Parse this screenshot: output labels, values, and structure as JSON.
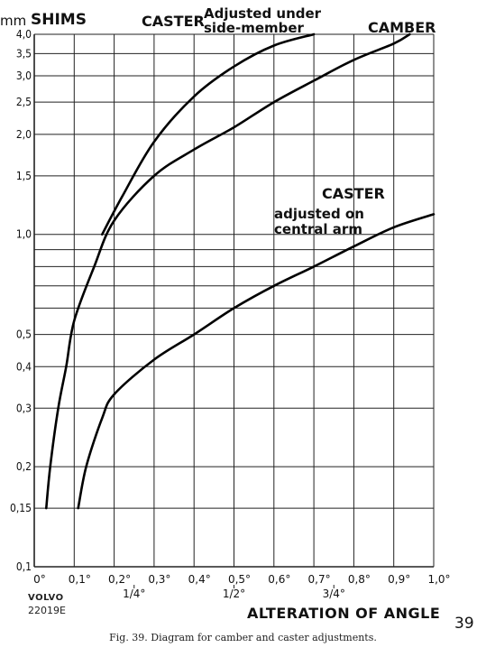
{
  "chart_data": {
    "type": "line",
    "y_unit": "mm",
    "ylabel": "SHIMS",
    "xlabel": "ALTERATION OF ANGLE",
    "x_range": [
      0,
      1.0
    ],
    "y_range": [
      0.1,
      4.0
    ],
    "y_scale": "log",
    "grid": true,
    "x_ticks": [
      "0°",
      "0,1°",
      "0,2°",
      "0,3°",
      "0,4°",
      "0,5°",
      "0,6°",
      "0,7°",
      "0,8°",
      "0,9°",
      "1,0°"
    ],
    "x_tick_values": [
      0,
      0.1,
      0.2,
      0.3,
      0.4,
      0.5,
      0.6,
      0.7,
      0.8,
      0.9,
      1.0
    ],
    "x_fraction_ticks": [
      {
        "label": "1/4°",
        "value": 0.25
      },
      {
        "label": "1/2°",
        "value": 0.5
      },
      {
        "label": "3/4°",
        "value": 0.75
      }
    ],
    "y_ticks": [
      "4,0",
      "3,5",
      "3,0",
      "2,5",
      "2,0",
      "1,5",
      "1,0",
      "0,5",
      "0,4",
      "0,3",
      "0,2",
      "0,15",
      "0,1"
    ],
    "y_tick_values": [
      4.0,
      3.5,
      3.0,
      2.5,
      2.0,
      1.5,
      1.0,
      0.5,
      0.4,
      0.3,
      0.2,
      0.15,
      0.1
    ],
    "y_minor_grid": [
      0.6,
      0.7,
      0.8,
      0.9
    ],
    "series": [
      {
        "name": "CASTER Adjusted under side-member",
        "points": [
          [
            0.17,
            1.0
          ],
          [
            0.22,
            1.3
          ],
          [
            0.3,
            1.9
          ],
          [
            0.4,
            2.6
          ],
          [
            0.5,
            3.2
          ],
          [
            0.6,
            3.7
          ],
          [
            0.7,
            4.0
          ]
        ]
      },
      {
        "name": "CAMBER",
        "points": [
          [
            0.03,
            0.15
          ],
          [
            0.04,
            0.2
          ],
          [
            0.06,
            0.3
          ],
          [
            0.08,
            0.4
          ],
          [
            0.1,
            0.55
          ],
          [
            0.15,
            0.8
          ],
          [
            0.2,
            1.1
          ],
          [
            0.3,
            1.5
          ],
          [
            0.4,
            1.8
          ],
          [
            0.5,
            2.1
          ],
          [
            0.6,
            2.5
          ],
          [
            0.7,
            2.9
          ],
          [
            0.8,
            3.35
          ],
          [
            0.9,
            3.75
          ],
          [
            0.94,
            4.0
          ]
        ]
      },
      {
        "name": "CASTER adjusted on central arm",
        "points": [
          [
            0.11,
            0.15
          ],
          [
            0.13,
            0.2
          ],
          [
            0.17,
            0.28
          ],
          [
            0.2,
            0.33
          ],
          [
            0.3,
            0.42
          ],
          [
            0.4,
            0.5
          ],
          [
            0.5,
            0.6
          ],
          [
            0.6,
            0.7
          ],
          [
            0.7,
            0.8
          ],
          [
            0.8,
            0.92
          ],
          [
            0.9,
            1.05
          ],
          [
            1.0,
            1.15
          ]
        ]
      }
    ],
    "annotations": [
      "CASTER",
      "Adjusted under",
      "side-member",
      "CAMBER",
      "CASTER",
      "adjusted on",
      "central arm"
    ],
    "caption": "Fig. 39. Diagram for camber and caster adjustments.",
    "page_number": "39",
    "brand": "VOLVO",
    "drawing_number": "22019E"
  }
}
